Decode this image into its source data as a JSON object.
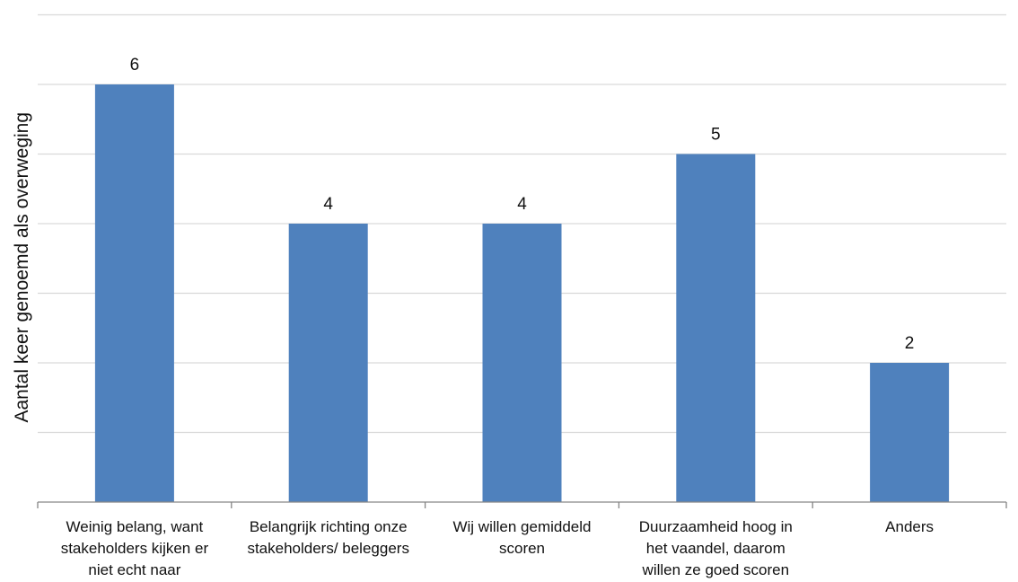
{
  "chart_data": {
    "type": "bar",
    "categories": [
      [
        "Weinig belang, want",
        "stakeholders kijken er",
        "niet echt naar"
      ],
      [
        "Belangrijk richting onze",
        "stakeholders/ beleggers"
      ],
      [
        "Wij willen gemiddeld",
        "scoren"
      ],
      [
        "Duurzaamheid hoog in",
        "het vaandel, daarom",
        "willen ze goed scoren"
      ],
      [
        "Anders"
      ]
    ],
    "values": [
      6,
      4,
      4,
      5,
      2
    ],
    "data_labels": [
      "6",
      "4",
      "4",
      "5",
      "2"
    ],
    "title": "",
    "xlabel": "",
    "ylabel": "Aantal keer genoemd als overweging",
    "ylim": [
      0,
      7
    ],
    "grid": true,
    "bar_color": "#4F81BD",
    "grid_color": "#D9D9D9",
    "axis_color": "#868686"
  }
}
